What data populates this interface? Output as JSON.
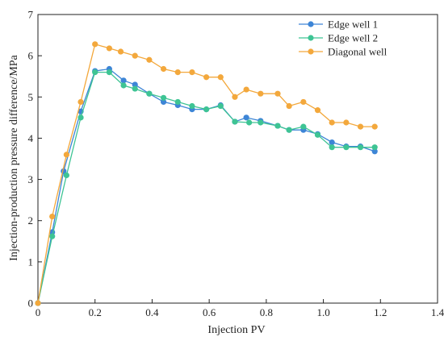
{
  "chart_data": {
    "type": "line",
    "xlabel": "Injection PV",
    "ylabel": "Injection-production pressure difference/MPa",
    "xlim": [
      0,
      1.4
    ],
    "ylim": [
      0,
      7
    ],
    "xticks": [
      0,
      0.2,
      0.4,
      0.6,
      0.8,
      1.0,
      1.2,
      1.4
    ],
    "xtick_labels": [
      "0",
      "0.2",
      "0.4",
      "0.6",
      "0.8",
      "1.0",
      "1.2",
      "1.4"
    ],
    "yticks": [
      0,
      1,
      2,
      3,
      4,
      5,
      6,
      7
    ],
    "ytick_labels": [
      "0",
      "1",
      "2",
      "3",
      "4",
      "5",
      "6",
      "7"
    ],
    "grid": false,
    "legend_position": "top-right",
    "series": [
      {
        "name": "Edge well 1",
        "color": "#3d85d6",
        "x": [
          0,
          0.05,
          0.09,
          0.15,
          0.2,
          0.25,
          0.3,
          0.34,
          0.39,
          0.44,
          0.49,
          0.54,
          0.59,
          0.64,
          0.69,
          0.73,
          0.78,
          0.84,
          0.88,
          0.93,
          0.98,
          1.03,
          1.08,
          1.13,
          1.18
        ],
        "y": [
          0,
          1.72,
          3.2,
          4.65,
          5.63,
          5.68,
          5.4,
          5.3,
          5.08,
          4.88,
          4.8,
          4.7,
          4.7,
          4.8,
          4.4,
          4.5,
          4.42,
          4.3,
          4.2,
          4.2,
          4.1,
          3.9,
          3.8,
          3.8,
          3.68
        ]
      },
      {
        "name": "Edge well 2",
        "color": "#3ec494",
        "x": [
          0,
          0.05,
          0.1,
          0.15,
          0.2,
          0.25,
          0.3,
          0.34,
          0.39,
          0.44,
          0.49,
          0.54,
          0.59,
          0.64,
          0.69,
          0.74,
          0.78,
          0.84,
          0.88,
          0.93,
          0.98,
          1.03,
          1.08,
          1.13,
          1.18
        ],
        "y": [
          0,
          1.62,
          3.1,
          4.5,
          5.6,
          5.6,
          5.28,
          5.2,
          5.08,
          4.98,
          4.88,
          4.78,
          4.7,
          4.78,
          4.4,
          4.38,
          4.38,
          4.3,
          4.2,
          4.28,
          4.08,
          3.78,
          3.78,
          3.78,
          3.78
        ]
      },
      {
        "name": "Diagonal well",
        "color": "#f3a83c",
        "x": [
          0,
          0.05,
          0.1,
          0.15,
          0.2,
          0.25,
          0.29,
          0.34,
          0.39,
          0.44,
          0.49,
          0.54,
          0.59,
          0.64,
          0.69,
          0.73,
          0.78,
          0.84,
          0.88,
          0.93,
          0.98,
          1.03,
          1.08,
          1.13,
          1.18
        ],
        "y": [
          0,
          2.1,
          3.6,
          4.88,
          6.28,
          6.18,
          6.1,
          6.0,
          5.9,
          5.68,
          5.6,
          5.6,
          5.48,
          5.48,
          5.0,
          5.18,
          5.08,
          5.08,
          4.78,
          4.88,
          4.68,
          4.38,
          4.38,
          4.28,
          4.28
        ]
      }
    ]
  }
}
